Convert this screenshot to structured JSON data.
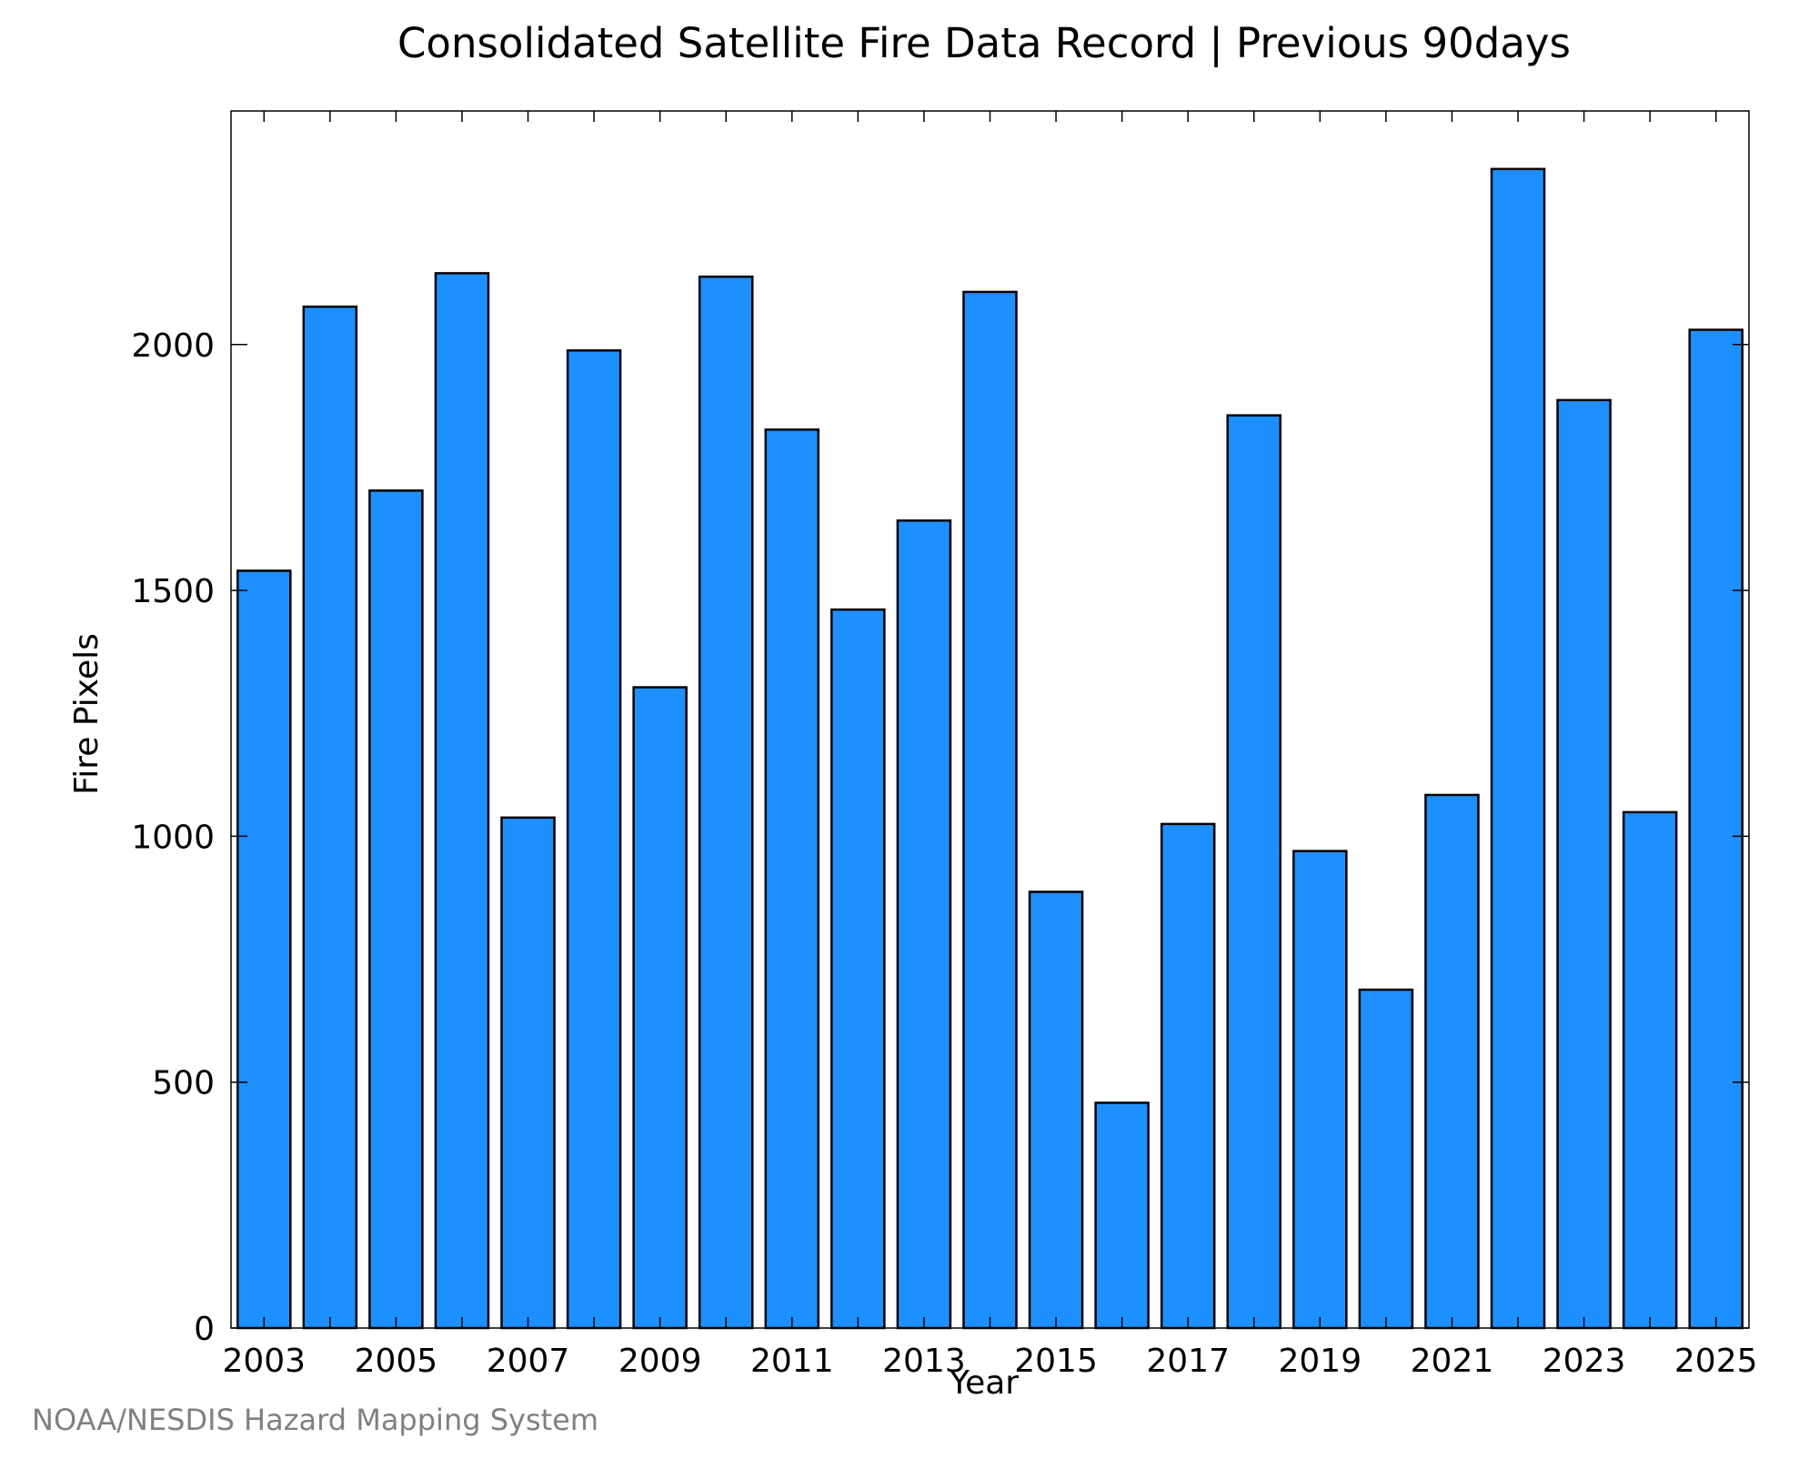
{
  "chart_data": {
    "type": "bar",
    "title": "Consolidated Satellite Fire Data Record | Previous 90days",
    "xlabel": "Year",
    "ylabel": "Fire Pixels",
    "categories": [
      "2003",
      "2004",
      "2005",
      "2006",
      "2007",
      "2008",
      "2009",
      "2010",
      "2011",
      "2012",
      "2013",
      "2014",
      "2015",
      "2016",
      "2017",
      "2018",
      "2019",
      "2020",
      "2021",
      "2022",
      "2023",
      "2024",
      "2025"
    ],
    "values": [
      1540,
      2077,
      1703,
      2145,
      1038,
      1988,
      1303,
      2138,
      1827,
      1461,
      1642,
      2107,
      887,
      458,
      1025,
      1856,
      970,
      688,
      1084,
      2357,
      1887,
      1049,
      2030
    ],
    "x_tick_labels": [
      "2003",
      "2005",
      "2007",
      "2009",
      "2011",
      "2013",
      "2015",
      "2017",
      "2019",
      "2021",
      "2023",
      "2025"
    ],
    "y_ticks": [
      0,
      500,
      1000,
      1500,
      2000
    ],
    "ylim": [
      0,
      2475
    ],
    "grid": false,
    "bar_color": "#1e8fff",
    "bar_edge_color": "#000000"
  },
  "credit": "NOAA/NESDIS Hazard Mapping System"
}
